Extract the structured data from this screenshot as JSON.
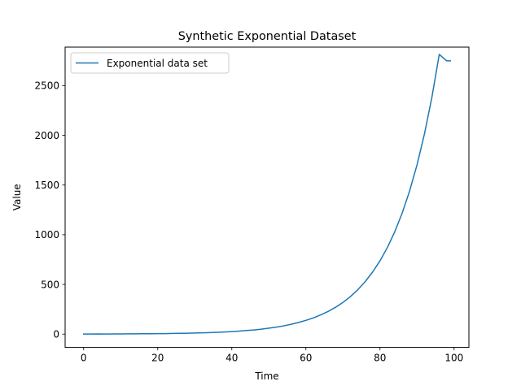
{
  "chart_data": {
    "type": "line",
    "title": "Synthetic Exponential Dataset",
    "xlabel": "Time",
    "ylabel": "Value",
    "xlim": [
      -5,
      104
    ],
    "ylim": [
      -134,
      2888
    ],
    "xticks": [
      0,
      20,
      40,
      60,
      80,
      100
    ],
    "yticks": [
      0,
      500,
      1000,
      1500,
      2000,
      2500
    ],
    "grid": false,
    "legend_position": "upper left",
    "colors": {
      "series": "#1f77b4",
      "axes": "#000000",
      "background": "#ffffff"
    },
    "series": [
      {
        "name": "Exponential data set",
        "x": [
          0,
          2,
          4,
          6,
          8,
          10,
          12,
          14,
          16,
          18,
          20,
          22,
          24,
          26,
          28,
          30,
          32,
          34,
          36,
          38,
          40,
          42,
          44,
          46,
          48,
          50,
          52,
          54,
          56,
          58,
          60,
          62,
          64,
          66,
          68,
          70,
          72,
          74,
          76,
          78,
          80,
          82,
          84,
          86,
          88,
          90,
          92,
          94,
          96,
          98,
          99
        ],
        "values": [
          1,
          1,
          2,
          1,
          2,
          2,
          3,
          3,
          4,
          4,
          5,
          5,
          7,
          8,
          9,
          11,
          13,
          15,
          18,
          21,
          25,
          30,
          36,
          42,
          50,
          60,
          70,
          83,
          99,
          117,
          138,
          163,
          193,
          228,
          270,
          319,
          377,
          446,
          528,
          624,
          738,
          872,
          1031,
          1219,
          1441,
          1704,
          2014,
          2381,
          2815,
          2750,
          2750
        ]
      }
    ]
  }
}
